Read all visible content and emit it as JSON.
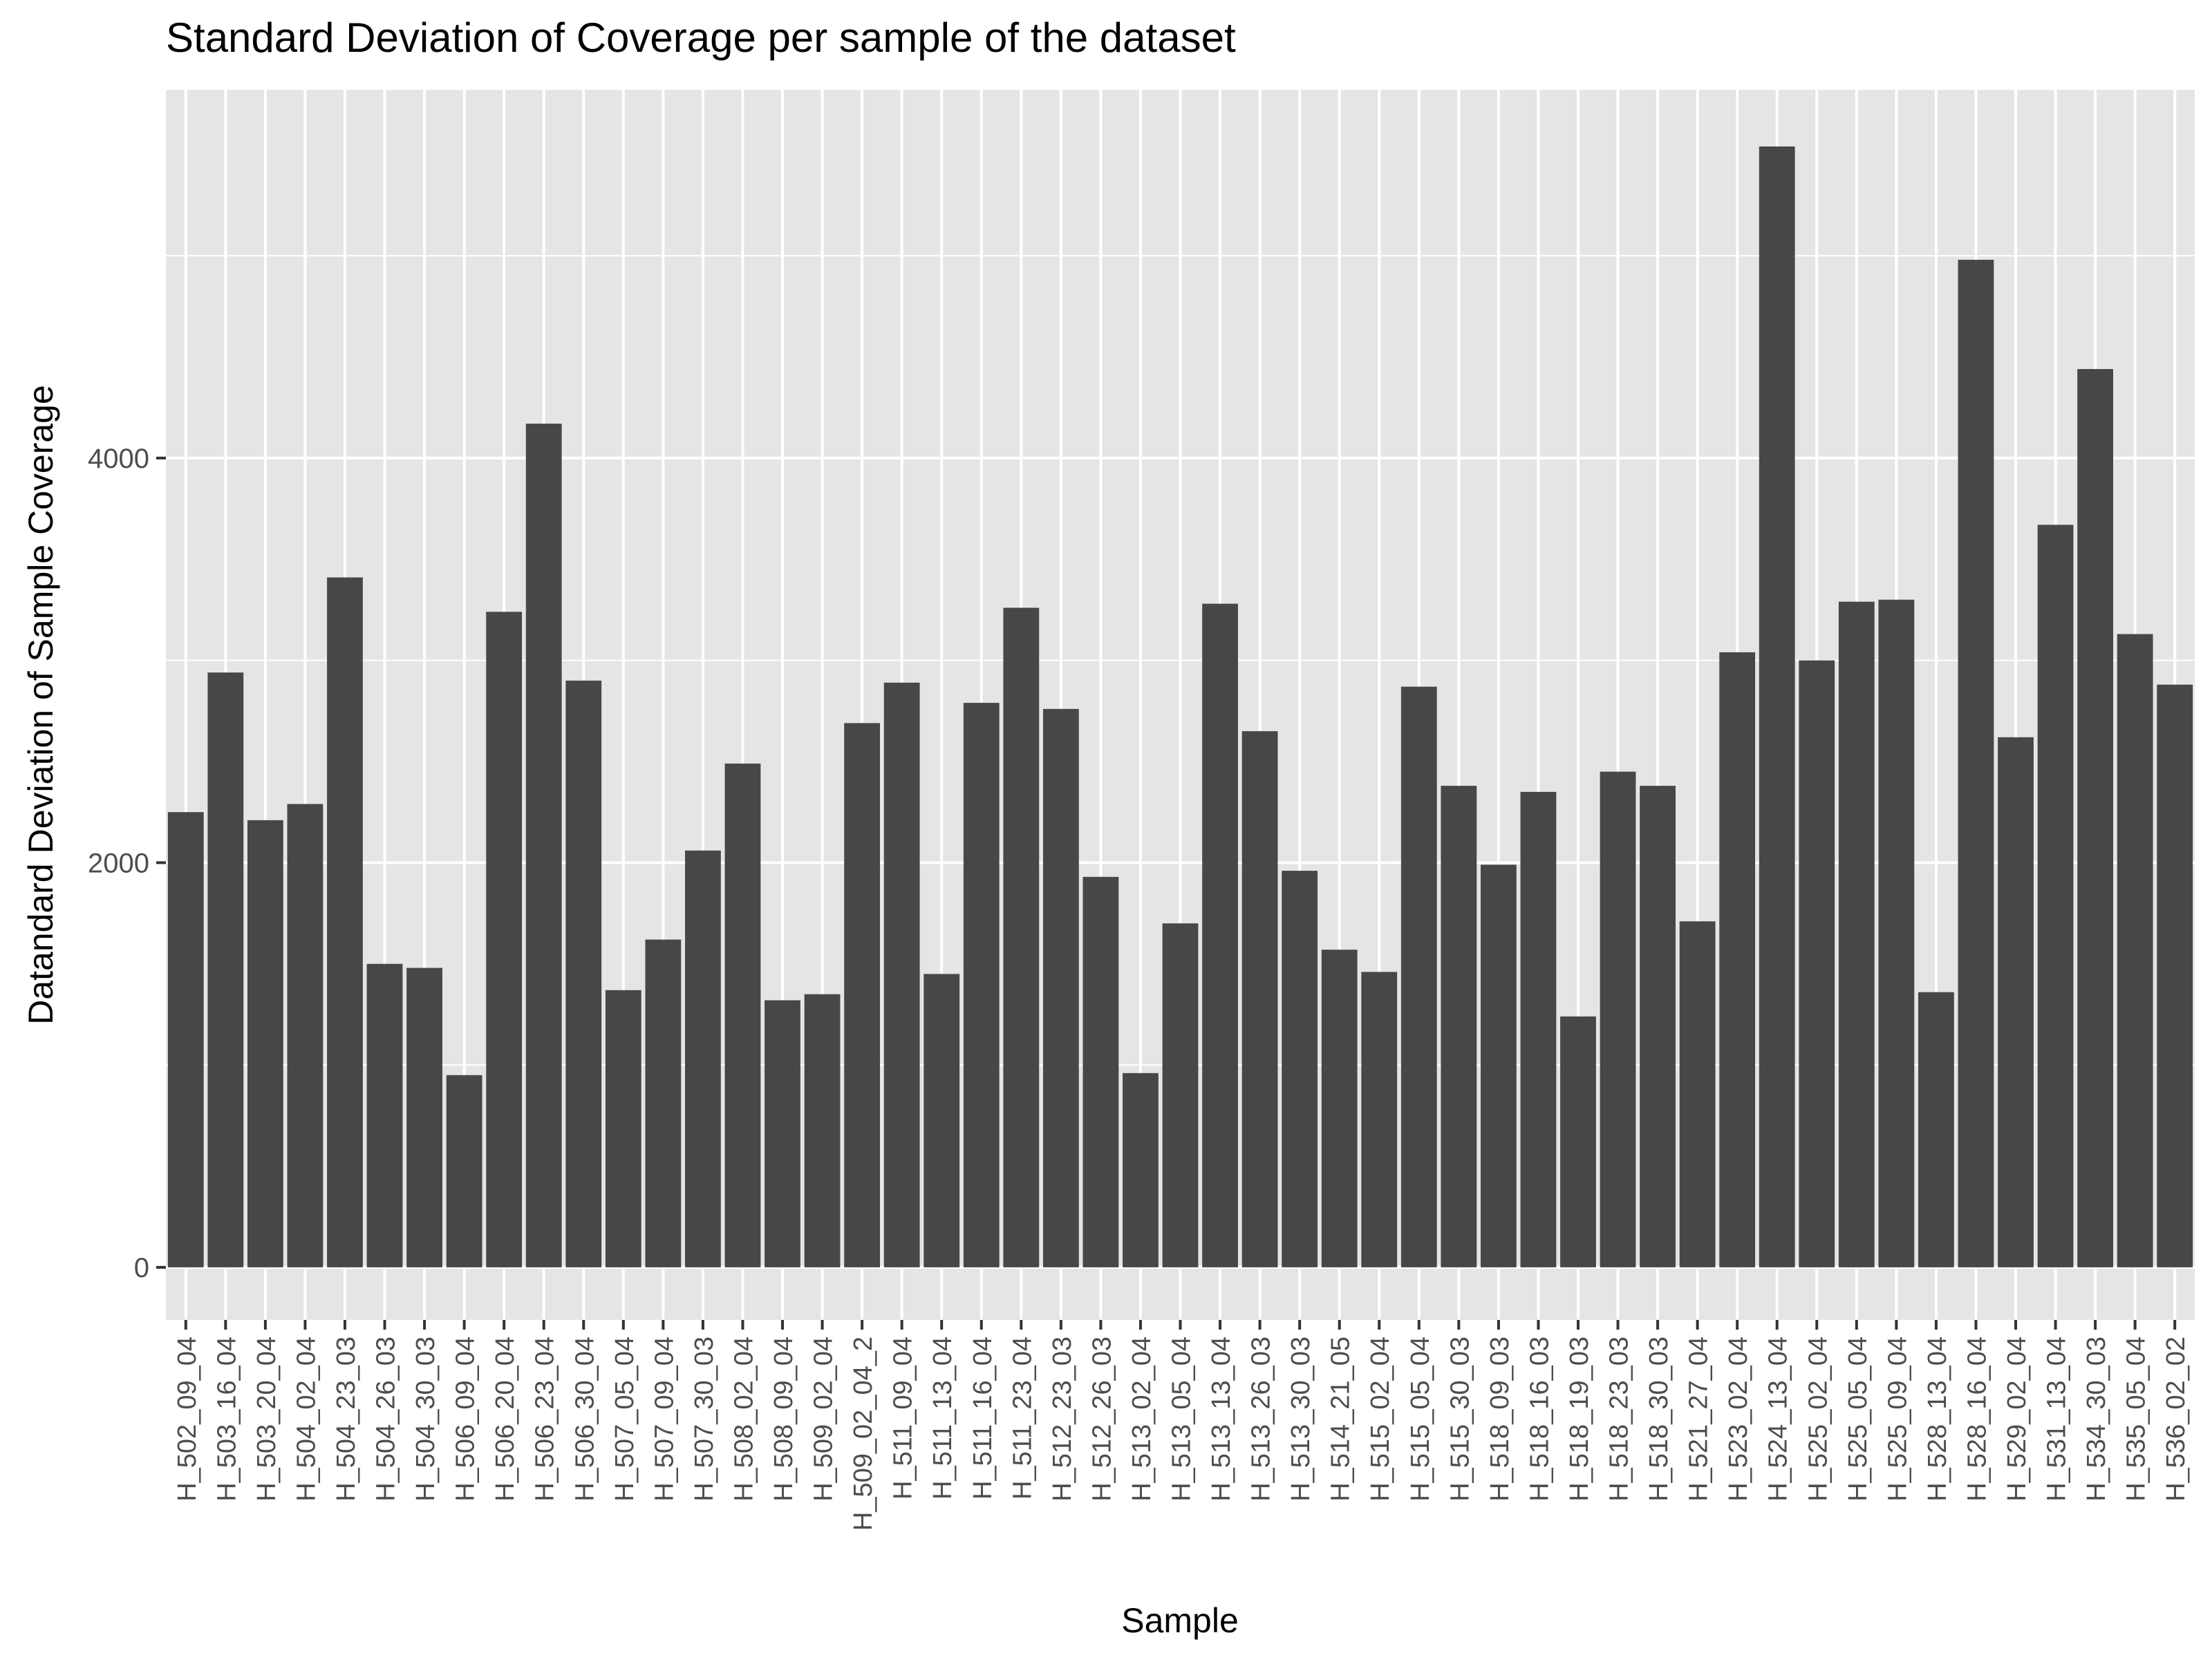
{
  "chart_data": {
    "type": "bar",
    "title": "Standard Deviation of Coverage per sample of the dataset",
    "xlabel": "Sample",
    "ylabel": "Datandard Deviation of Sample Coverage",
    "ylim": [
      -260,
      5820
    ],
    "y_ticks": [
      0,
      2000,
      4000
    ],
    "y_tick_labels": [
      "0",
      "2000",
      "4000"
    ],
    "y_minor_ticks": [
      1000,
      3000,
      5000
    ],
    "grid": true,
    "legend": "none",
    "colors": {
      "bar": "#474747",
      "panel": "#e5e5e5",
      "grid": "#ffffff",
      "text": "#000000",
      "tick_text": "#4d4d4d",
      "tick": "#333333"
    },
    "categories": [
      "H_502_09_04",
      "H_503_16_04",
      "H_503_20_04",
      "H_504_02_04",
      "H_504_23_03",
      "H_504_26_03",
      "H_504_30_03",
      "H_506_09_04",
      "H_506_20_04",
      "H_506_23_04",
      "H_506_30_04",
      "H_507_05_04",
      "H_507_09_04",
      "H_507_30_03",
      "H_508_02_04",
      "H_508_09_04",
      "H_509_02_04",
      "H_509_02_04_2",
      "H_511_09_04",
      "H_511_13_04",
      "H_511_16_04",
      "H_511_23_04",
      "H_512_23_03",
      "H_512_26_03",
      "H_513_02_04",
      "H_513_05_04",
      "H_513_13_04",
      "H_513_26_03",
      "H_513_30_03",
      "H_514_21_05",
      "H_515_02_04",
      "H_515_05_04",
      "H_515_30_03",
      "H_518_09_03",
      "H_518_16_03",
      "H_518_19_03",
      "H_518_23_03",
      "H_518_30_03",
      "H_521_27_04",
      "H_523_02_04",
      "H_524_13_04",
      "H_525_02_04",
      "H_525_05_04",
      "H_525_09_04",
      "H_528_13_04",
      "H_528_16_04",
      "H_529_02_04",
      "H_531_13_04",
      "H_534_30_03",
      "H_535_05_04",
      "H_536_02_02"
    ],
    "values": [
      2250,
      2940,
      2210,
      2290,
      3410,
      1500,
      1480,
      950,
      3240,
      4170,
      2900,
      1370,
      1620,
      2060,
      2490,
      1320,
      1350,
      2690,
      2890,
      1450,
      2790,
      3260,
      2760,
      1930,
      960,
      1700,
      3280,
      2650,
      1960,
      1570,
      1460,
      2870,
      2380,
      1990,
      2350,
      1240,
      2450,
      2380,
      1710,
      3040,
      5540,
      3000,
      3290,
      3300,
      1360,
      4980,
      2620,
      3670,
      4440,
      3130,
      2880
    ]
  }
}
